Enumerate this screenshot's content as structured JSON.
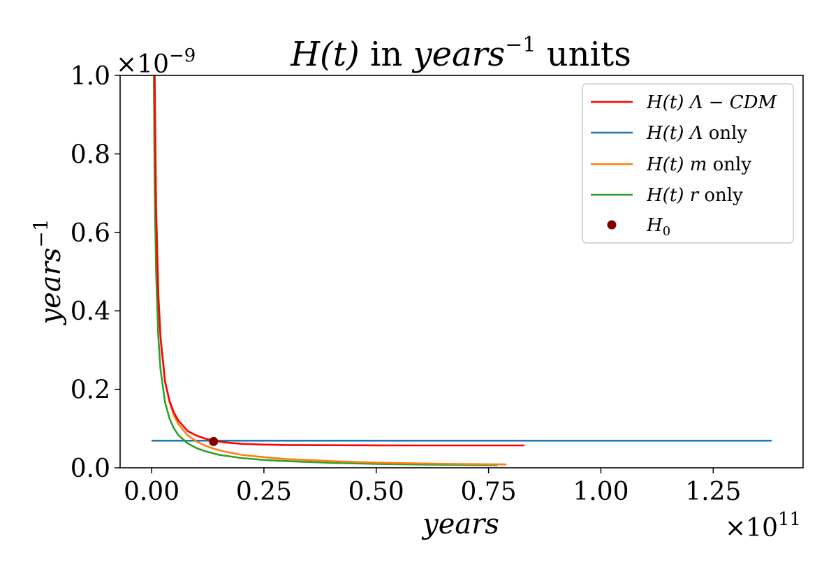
{
  "chart_data": {
    "type": "line",
    "title": {
      "italic_part": "H(t)",
      "middle": " in ",
      "italic_years": "years",
      "superscript": "−1",
      "suffix": " units"
    },
    "xlabel": "years",
    "ylabel": {
      "base": "years",
      "superscript": "−1"
    },
    "x_multiplier": {
      "base": "×10",
      "exponent": "11"
    },
    "y_multiplier": {
      "base": "×10",
      "exponent": "−9"
    },
    "xlim": [
      -0.07,
      1.45
    ],
    "ylim": [
      0.0,
      1.0
    ],
    "xticks": [
      0.0,
      0.25,
      0.5,
      0.75,
      1.0,
      1.25
    ],
    "xtick_labels": [
      "0.00",
      "0.25",
      "0.50",
      "0.75",
      "1.00",
      "1.25"
    ],
    "yticks": [
      0.0,
      0.2,
      0.4,
      0.6,
      0.8,
      1.0
    ],
    "ytick_labels": [
      "0.0",
      "0.2",
      "0.4",
      "0.6",
      "0.8",
      "1.0"
    ],
    "legend_position": "top-right",
    "series": [
      {
        "name": "H(t) Λ−CDM",
        "color": "#ff0000",
        "x": [
          0.007,
          0.01,
          0.015,
          0.02,
          0.03,
          0.04,
          0.05,
          0.06,
          0.08,
          0.1,
          0.12,
          0.14,
          0.16,
          0.2,
          0.25,
          0.3,
          0.4,
          0.5,
          0.6,
          0.7,
          0.83
        ],
        "y": [
          1.0,
          0.66,
          0.44,
          0.33,
          0.22,
          0.17,
          0.14,
          0.12,
          0.094,
          0.082,
          0.074,
          0.069,
          0.065,
          0.061,
          0.059,
          0.058,
          0.0575,
          0.0572,
          0.057,
          0.057,
          0.057
        ]
      },
      {
        "name": "H(t) Λ only",
        "color": "#1f77b4",
        "x": [
          0.0,
          1.38
        ],
        "y": [
          0.069,
          0.069
        ]
      },
      {
        "name": "H(t) m only",
        "color": "#ff7f0e",
        "x": [
          0.007,
          0.01,
          0.015,
          0.02,
          0.03,
          0.04,
          0.05,
          0.06,
          0.08,
          0.1,
          0.12,
          0.14,
          0.16,
          0.2,
          0.25,
          0.3,
          0.4,
          0.5,
          0.6,
          0.7,
          0.79
        ],
        "y": [
          0.95,
          0.667,
          0.444,
          0.333,
          0.222,
          0.167,
          0.133,
          0.111,
          0.083,
          0.067,
          0.056,
          0.048,
          0.042,
          0.033,
          0.027,
          0.022,
          0.017,
          0.013,
          0.011,
          0.0095,
          0.0085
        ]
      },
      {
        "name": "H(t) r only",
        "color": "#2ca02c",
        "x": [
          0.005,
          0.007,
          0.01,
          0.015,
          0.02,
          0.03,
          0.04,
          0.05,
          0.06,
          0.08,
          0.1,
          0.12,
          0.15,
          0.2,
          0.25,
          0.3,
          0.4,
          0.5,
          0.6,
          0.7,
          0.77
        ],
        "y": [
          1.0,
          0.71,
          0.5,
          0.333,
          0.25,
          0.167,
          0.125,
          0.1,
          0.083,
          0.0625,
          0.05,
          0.042,
          0.033,
          0.025,
          0.02,
          0.017,
          0.0125,
          0.01,
          0.0083,
          0.0071,
          0.0065
        ]
      }
    ],
    "points": [
      {
        "name": "H0",
        "label_base": "H",
        "label_sub": "0",
        "color": "#800000",
        "x": 0.138,
        "y": 0.067
      }
    ],
    "legend": [
      {
        "line": "H(t)",
        "suffix_symbol": "Λ − CDM",
        "suffix_text": "",
        "color": "#ff0000"
      },
      {
        "line": "H(t)",
        "suffix_symbol": "Λ",
        "suffix_text": " only",
        "color": "#1f77b4"
      },
      {
        "line": "H(t)",
        "suffix_symbol": "m",
        "suffix_text": " only",
        "color": "#ff7f0e"
      },
      {
        "line": "H(t)",
        "suffix_symbol": "r",
        "suffix_text": " only",
        "color": "#2ca02c"
      }
    ]
  }
}
